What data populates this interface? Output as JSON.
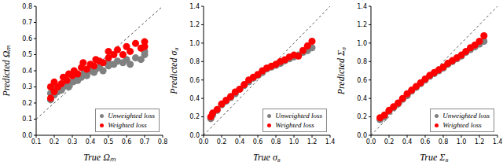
{
  "chart_data": [
    {
      "type": "scatter",
      "x_label": "True Ωₘ",
      "y_label": "Predicted Ωₘ",
      "legend": "lower right",
      "xlim": [
        0.1,
        0.8
      ],
      "ylim": [
        0,
        0.8
      ],
      "xticks": [
        0.1,
        0.2,
        0.3,
        0.4,
        0.5,
        0.6,
        0.7,
        0.8
      ],
      "yticks": [
        {
          "value": 0,
          "label": "0.0"
        },
        0.1,
        0.2,
        0.3,
        0.4,
        0.5,
        0.6,
        0.7,
        0.8
      ],
      "x": [
        0.18,
        0.18,
        0.2,
        0.2,
        0.22,
        0.24,
        0.25,
        0.27,
        0.28,
        0.3,
        0.31,
        0.33,
        0.35,
        0.36,
        0.38,
        0.4,
        0.42,
        0.43,
        0.45,
        0.47,
        0.5,
        0.5,
        0.53,
        0.55,
        0.58,
        0.6,
        0.62,
        0.65,
        0.68,
        0.7,
        0.7
      ],
      "series": [
        {
          "name": "Unweighted loss",
          "color": "#808080",
          "marker": "circle",
          "values": [
            0.22,
            0.26,
            0.25,
            0.29,
            0.27,
            0.28,
            0.3,
            0.31,
            0.3,
            0.33,
            0.35,
            0.34,
            0.36,
            0.38,
            0.37,
            0.4,
            0.39,
            0.41,
            0.42,
            0.4,
            0.43,
            0.45,
            0.44,
            0.46,
            0.45,
            0.47,
            0.44,
            0.48,
            0.47,
            0.5,
            0.52
          ]
        },
        {
          "name": "Weighted loss",
          "color": "#ff0000",
          "marker": "circle",
          "values": [
            0.23,
            0.3,
            0.27,
            0.33,
            0.3,
            0.32,
            0.36,
            0.34,
            0.38,
            0.37,
            0.4,
            0.38,
            0.42,
            0.45,
            0.41,
            0.44,
            0.43,
            0.47,
            0.46,
            0.45,
            0.48,
            0.52,
            0.5,
            0.53,
            0.5,
            0.55,
            0.52,
            0.57,
            0.54,
            0.58,
            0.55
          ]
        }
      ]
    },
    {
      "type": "scatter",
      "x_label": "True σ₈",
      "y_label": "Predicted σ₈",
      "legend": "lower right",
      "xlim": [
        0,
        1.4
      ],
      "ylim": [
        0,
        1.4
      ],
      "xticks": [
        {
          "value": 0,
          "label": "0.0"
        },
        0.2,
        0.4,
        0.6,
        0.8,
        {
          "value": 1,
          "label": "1.0"
        },
        1.2,
        1.4
      ],
      "yticks": [
        {
          "value": 0,
          "label": "0.0"
        },
        0.2,
        0.4,
        0.6,
        0.8,
        {
          "value": 1,
          "label": "1.0"
        },
        1.2,
        1.4
      ],
      "x": [
        0.08,
        0.1,
        0.15,
        0.2,
        0.25,
        0.3,
        0.35,
        0.4,
        0.45,
        0.5,
        0.55,
        0.6,
        0.65,
        0.7,
        0.75,
        0.8,
        0.85,
        0.9,
        0.95,
        1.0,
        1.05,
        1.1,
        1.15,
        1.2
      ],
      "series": [
        {
          "name": "Unweighted loss",
          "color": "#808080",
          "marker": "circle",
          "values": [
            0.18,
            0.22,
            0.27,
            0.33,
            0.37,
            0.41,
            0.45,
            0.5,
            0.54,
            0.58,
            0.62,
            0.65,
            0.68,
            0.72,
            0.74,
            0.76,
            0.78,
            0.81,
            0.83,
            0.85,
            0.87,
            0.9,
            0.92,
            0.95
          ]
        },
        {
          "name": "Weighted loss",
          "color": "#ff0000",
          "marker": "circle",
          "values": [
            0.2,
            0.24,
            0.28,
            0.34,
            0.38,
            0.42,
            0.47,
            0.5,
            0.55,
            0.6,
            0.63,
            0.66,
            0.7,
            0.73,
            0.75,
            0.77,
            0.8,
            0.82,
            0.85,
            0.87,
            0.86,
            0.92,
            0.97,
            1.02
          ]
        }
      ]
    },
    {
      "type": "scatter",
      "x_label": "True Σ₈",
      "y_label": "Predicted Σ₈",
      "legend": "lower right",
      "xlim": [
        0,
        1.4
      ],
      "ylim": [
        0,
        1.4
      ],
      "xticks": [
        {
          "value": 0,
          "label": "0.0"
        },
        0.2,
        0.4,
        0.6,
        0.8,
        {
          "value": 1,
          "label": "1.0"
        },
        1.2,
        1.4
      ],
      "yticks": [
        {
          "value": 0,
          "label": "0.0"
        },
        0.2,
        0.4,
        0.6,
        0.8,
        {
          "value": 1,
          "label": "1.0"
        },
        1.2,
        1.4
      ],
      "x": [
        0.1,
        0.15,
        0.2,
        0.25,
        0.3,
        0.35,
        0.4,
        0.45,
        0.5,
        0.55,
        0.6,
        0.65,
        0.7,
        0.75,
        0.8,
        0.85,
        0.9,
        0.95,
        1.0,
        1.05,
        1.1,
        1.15,
        1.2,
        1.25
      ],
      "series": [
        {
          "name": "Unweighted loss",
          "color": "#808080",
          "marker": "circle",
          "values": [
            0.17,
            0.2,
            0.26,
            0.3,
            0.34,
            0.39,
            0.43,
            0.48,
            0.52,
            0.56,
            0.6,
            0.64,
            0.67,
            0.7,
            0.73,
            0.77,
            0.8,
            0.83,
            0.86,
            0.9,
            0.93,
            0.96,
            0.99,
            1.02
          ]
        },
        {
          "name": "Weighted loss",
          "color": "#ff0000",
          "marker": "circle",
          "values": [
            0.19,
            0.22,
            0.27,
            0.31,
            0.35,
            0.4,
            0.45,
            0.49,
            0.53,
            0.57,
            0.61,
            0.65,
            0.68,
            0.71,
            0.74,
            0.78,
            0.81,
            0.84,
            0.87,
            0.91,
            0.95,
            0.98,
            1.02,
            1.08
          ]
        }
      ]
    }
  ]
}
